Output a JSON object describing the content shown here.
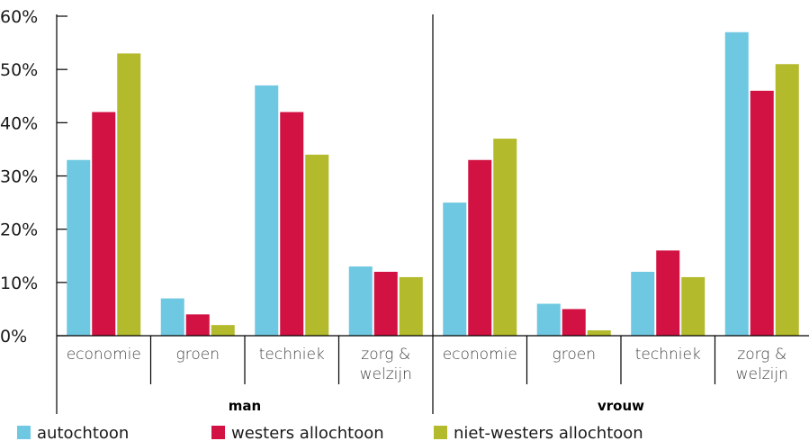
{
  "chart_data": {
    "type": "bar",
    "ylim": [
      0,
      60
    ],
    "yticks": [
      "0%",
      "10%",
      "20%",
      "30%",
      "40%",
      "50%",
      "60%"
    ],
    "groups": [
      {
        "label": "man",
        "categories": [
          {
            "lines": [
              "economie"
            ],
            "values": [
              33,
              42,
              53
            ]
          },
          {
            "lines": [
              "groen"
            ],
            "values": [
              7,
              4,
              2
            ]
          },
          {
            "lines": [
              "techniek"
            ],
            "values": [
              47,
              42,
              34
            ]
          },
          {
            "lines": [
              "zorg &",
              "welzijn"
            ],
            "values": [
              13,
              12,
              11
            ]
          }
        ]
      },
      {
        "label": "vrouw",
        "categories": [
          {
            "lines": [
              "economie"
            ],
            "values": [
              25,
              33,
              37
            ]
          },
          {
            "lines": [
              "groen"
            ],
            "values": [
              6,
              5,
              1
            ]
          },
          {
            "lines": [
              "techniek"
            ],
            "values": [
              12,
              16,
              11
            ]
          },
          {
            "lines": [
              "zorg &",
              "welzijn"
            ],
            "values": [
              57,
              46,
              51
            ]
          }
        ]
      }
    ],
    "series": [
      {
        "name": "autochtoon",
        "color": "#6fc8e1"
      },
      {
        "name": "westers allochtoon",
        "color": "#d11242"
      },
      {
        "name": "niet-westers allochtoon",
        "color": "#b3ba2c"
      }
    ]
  }
}
